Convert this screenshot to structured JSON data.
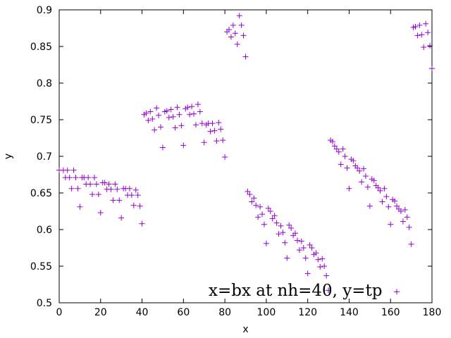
{
  "chart_data": {
    "type": "scatter",
    "xlabel": "x",
    "ylabel": "y",
    "annotation": "x=bx at nh=40, y=tp",
    "xlim": [
      0,
      180
    ],
    "ylim": [
      0.5,
      0.9
    ],
    "x_ticks": [
      "0",
      "20",
      "40",
      "60",
      "80",
      "100",
      "120",
      "140",
      "160",
      "180"
    ],
    "y_ticks": [
      "0.5",
      "0.55",
      "0.6",
      "0.65",
      "0.7",
      "0.75",
      "0.8",
      "0.85",
      "0.9"
    ],
    "grid": false,
    "marker": "plus",
    "marker_color": "#9400d3",
    "series": [
      {
        "points": [
          [
            0,
            0.681
          ],
          [
            2,
            0.681
          ],
          [
            3,
            0.671
          ],
          [
            4,
            0.681
          ],
          [
            5,
            0.671
          ],
          [
            6,
            0.656
          ],
          [
            7,
            0.681
          ],
          [
            8,
            0.671
          ],
          [
            9,
            0.656
          ],
          [
            10,
            0.631
          ],
          [
            11,
            0.671
          ],
          [
            12,
            0.671
          ],
          [
            13,
            0.662
          ],
          [
            14,
            0.671
          ],
          [
            15,
            0.662
          ],
          [
            16,
            0.648
          ],
          [
            17,
            0.671
          ],
          [
            18,
            0.662
          ],
          [
            19,
            0.648
          ],
          [
            20,
            0.623
          ],
          [
            21,
            0.664
          ],
          [
            22,
            0.664
          ],
          [
            23,
            0.655
          ],
          [
            24,
            0.662
          ],
          [
            25,
            0.655
          ],
          [
            26,
            0.64
          ],
          [
            27,
            0.662
          ],
          [
            28,
            0.655
          ],
          [
            29,
            0.64
          ],
          [
            30,
            0.616
          ],
          [
            31,
            0.656
          ],
          [
            32,
            0.656
          ],
          [
            33,
            0.647
          ],
          [
            34,
            0.656
          ],
          [
            35,
            0.647
          ],
          [
            36,
            0.633
          ],
          [
            37,
            0.654
          ],
          [
            38,
            0.647
          ],
          [
            39,
            0.632
          ],
          [
            40,
            0.608
          ],
          [
            41,
            0.757
          ],
          [
            42,
            0.759
          ],
          [
            43,
            0.749
          ],
          [
            44,
            0.761
          ],
          [
            45,
            0.751
          ],
          [
            46,
            0.736
          ],
          [
            47,
            0.766
          ],
          [
            48,
            0.756
          ],
          [
            49,
            0.74
          ],
          [
            50,
            0.712
          ],
          [
            51,
            0.761
          ],
          [
            52,
            0.762
          ],
          [
            53,
            0.753
          ],
          [
            54,
            0.764
          ],
          [
            55,
            0.754
          ],
          [
            56,
            0.739
          ],
          [
            57,
            0.767
          ],
          [
            58,
            0.757
          ],
          [
            59,
            0.742
          ],
          [
            60,
            0.715
          ],
          [
            61,
            0.765
          ],
          [
            62,
            0.767
          ],
          [
            63,
            0.757
          ],
          [
            64,
            0.768
          ],
          [
            65,
            0.758
          ],
          [
            66,
            0.743
          ],
          [
            67,
            0.771
          ],
          [
            68,
            0.761
          ],
          [
            69,
            0.745
          ],
          [
            70,
            0.719
          ],
          [
            71,
            0.743
          ],
          [
            72,
            0.745
          ],
          [
            73,
            0.734
          ],
          [
            74,
            0.745
          ],
          [
            75,
            0.735
          ],
          [
            76,
            0.721
          ],
          [
            77,
            0.746
          ],
          [
            78,
            0.737
          ],
          [
            79,
            0.722
          ],
          [
            80,
            0.699
          ],
          [
            81,
            0.87
          ],
          [
            82,
            0.873
          ],
          [
            83,
            0.863
          ],
          [
            84,
            0.879
          ],
          [
            85,
            0.868
          ],
          [
            86,
            0.853
          ],
          [
            87,
            0.892
          ],
          [
            88,
            0.879
          ],
          [
            89,
            0.865
          ],
          [
            90,
            0.836
          ],
          [
            91,
            0.652
          ],
          [
            92,
            0.648
          ],
          [
            93,
            0.638
          ],
          [
            94,
            0.643
          ],
          [
            95,
            0.633
          ],
          [
            96,
            0.617
          ],
          [
            97,
            0.631
          ],
          [
            98,
            0.621
          ],
          [
            99,
            0.607
          ],
          [
            100,
            0.581
          ],
          [
            101,
            0.629
          ],
          [
            102,
            0.625
          ],
          [
            103,
            0.615
          ],
          [
            104,
            0.619
          ],
          [
            105,
            0.609
          ],
          [
            106,
            0.594
          ],
          [
            107,
            0.605
          ],
          [
            108,
            0.596
          ],
          [
            109,
            0.582
          ],
          [
            110,
            0.561
          ],
          [
            111,
            0.606
          ],
          [
            112,
            0.602
          ],
          [
            113,
            0.592
          ],
          [
            114,
            0.595
          ],
          [
            115,
            0.585
          ],
          [
            116,
            0.572
          ],
          [
            117,
            0.584
          ],
          [
            118,
            0.575
          ],
          [
            119,
            0.561
          ],
          [
            120,
            0.54
          ],
          [
            121,
            0.579
          ],
          [
            122,
            0.575
          ],
          [
            123,
            0.566
          ],
          [
            124,
            0.568
          ],
          [
            125,
            0.559
          ],
          [
            126,
            0.549
          ],
          [
            127,
            0.56
          ],
          [
            128,
            0.55
          ],
          [
            129,
            0.537
          ],
          [
            130,
            0.517
          ],
          [
            131,
            0.722
          ],
          [
            132,
            0.72
          ],
          [
            133,
            0.714
          ],
          [
            134,
            0.71
          ],
          [
            135,
            0.706
          ],
          [
            136,
            0.689
          ],
          [
            137,
            0.71
          ],
          [
            138,
            0.7
          ],
          [
            139,
            0.684
          ],
          [
            140,
            0.656
          ],
          [
            141,
            0.696
          ],
          [
            142,
            0.694
          ],
          [
            143,
            0.687
          ],
          [
            144,
            0.684
          ],
          [
            145,
            0.68
          ],
          [
            146,
            0.665
          ],
          [
            147,
            0.683
          ],
          [
            148,
            0.673
          ],
          [
            149,
            0.658
          ],
          [
            150,
            0.632
          ],
          [
            151,
            0.669
          ],
          [
            152,
            0.667
          ],
          [
            153,
            0.66
          ],
          [
            154,
            0.657
          ],
          [
            155,
            0.653
          ],
          [
            156,
            0.638
          ],
          [
            157,
            0.656
          ],
          [
            158,
            0.645
          ],
          [
            159,
            0.631
          ],
          [
            160,
            0.607
          ],
          [
            161,
            0.641
          ],
          [
            162,
            0.639
          ],
          [
            163,
            0.632
          ],
          [
            164,
            0.628
          ],
          [
            165,
            0.625
          ],
          [
            166,
            0.611
          ],
          [
            167,
            0.627
          ],
          [
            168,
            0.617
          ],
          [
            169,
            0.603
          ],
          [
            170,
            0.58
          ],
          [
            163,
            0.515
          ],
          [
            171,
            0.876
          ],
          [
            172,
            0.877
          ],
          [
            173,
            0.865
          ],
          [
            174,
            0.879
          ],
          [
            175,
            0.866
          ],
          [
            176,
            0.849
          ],
          [
            177,
            0.881
          ],
          [
            178,
            0.869
          ],
          [
            179,
            0.851
          ],
          [
            180,
            0.82
          ]
        ]
      }
    ]
  }
}
